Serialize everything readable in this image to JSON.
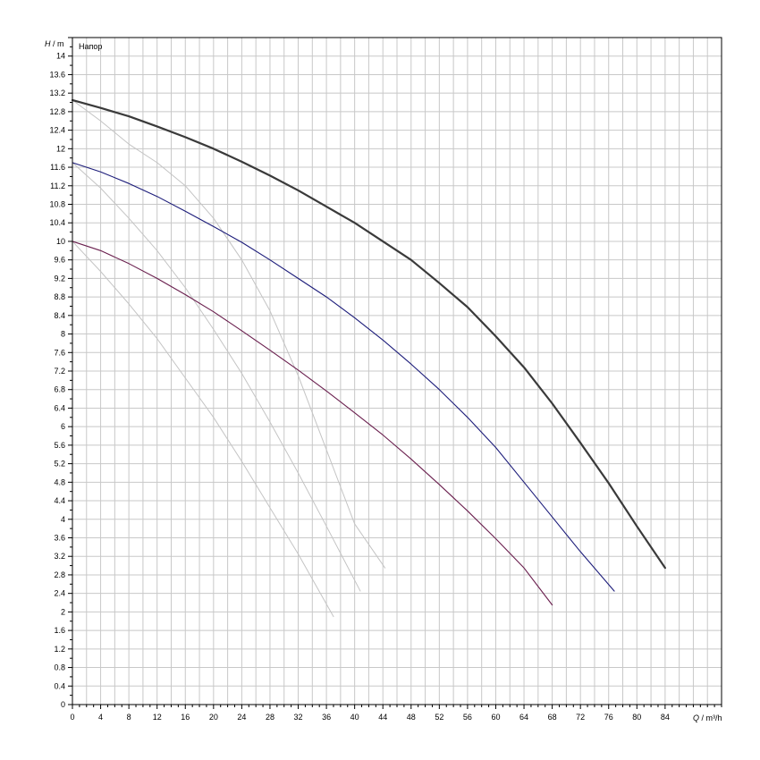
{
  "chart_data": {
    "type": "line",
    "title": "Напор",
    "xlabel": {
      "var": "Q",
      "unit": " / m³/h"
    },
    "ylabel": {
      "var": "H",
      "unit": " / m"
    },
    "xlim": [
      0,
      92
    ],
    "ylim": [
      0,
      14.4
    ],
    "grid": true,
    "x_ticks": [
      0,
      4,
      8,
      12,
      16,
      20,
      24,
      28,
      32,
      36,
      40,
      44,
      48,
      52,
      56,
      60,
      64,
      68,
      72,
      76,
      80,
      84
    ],
    "y_ticks": [
      0,
      0.4,
      0.8,
      1.2,
      1.6,
      2,
      2.4,
      2.8,
      3.2,
      3.6,
      4,
      4.4,
      4.8,
      5.2,
      5.6,
      6,
      6.4,
      6.8,
      7.2,
      7.6,
      8,
      8.4,
      8.8,
      9.2,
      9.6,
      10,
      10.4,
      10.8,
      11.2,
      11.6,
      12,
      12.4,
      12.8,
      13.2,
      13.6,
      14
    ],
    "colors": {
      "grid": "#c8c8c8",
      "frame": "#000000",
      "curve_max": "#3a3a3a",
      "curve_mid": "#1c1c7a",
      "curve_min": "#6a1f4e",
      "system": "#c4c4c4"
    },
    "series": [
      {
        "role": "curve_max",
        "width": 2.2,
        "x": [
          0,
          4,
          8,
          12,
          16,
          20,
          24,
          28,
          32,
          36,
          40,
          44,
          48,
          52,
          56,
          60,
          64,
          68,
          72,
          76,
          80,
          84
        ],
        "y": [
          13.05,
          12.88,
          12.7,
          12.48,
          12.25,
          12.0,
          11.72,
          11.42,
          11.1,
          10.75,
          10.4,
          10.0,
          9.6,
          9.1,
          8.58,
          7.95,
          7.28,
          6.5,
          5.65,
          4.78,
          3.85,
          2.95
        ]
      },
      {
        "role": "curve_mid",
        "width": 1.1,
        "x": [
          0,
          4,
          8,
          12,
          16,
          20,
          24,
          28,
          32,
          36,
          40,
          44,
          48,
          52,
          56,
          60,
          64,
          68,
          72,
          76.8
        ],
        "y": [
          11.7,
          11.5,
          11.25,
          10.97,
          10.65,
          10.32,
          9.98,
          9.6,
          9.2,
          8.8,
          8.35,
          7.87,
          7.35,
          6.8,
          6.2,
          5.55,
          4.8,
          4.05,
          3.3,
          2.45
        ]
      },
      {
        "role": "curve_min",
        "width": 1.1,
        "x": [
          0,
          4,
          8,
          12,
          16,
          20,
          24,
          28,
          32,
          36,
          40,
          44,
          48,
          52,
          56,
          60,
          64,
          68
        ],
        "y": [
          10.0,
          9.8,
          9.52,
          9.2,
          8.85,
          8.48,
          8.07,
          7.65,
          7.22,
          6.77,
          6.3,
          5.82,
          5.3,
          4.75,
          4.18,
          3.58,
          2.95,
          2.15
        ]
      },
      {
        "role": "system",
        "width": 1,
        "x": [
          0,
          4,
          8,
          12,
          16,
          20,
          24,
          28,
          32,
          36,
          40,
          44.3
        ],
        "y": [
          13.05,
          12.6,
          12.1,
          11.7,
          11.2,
          10.5,
          9.6,
          8.5,
          7.1,
          5.5,
          3.9,
          2.95
        ]
      },
      {
        "role": "system",
        "width": 1,
        "x": [
          0,
          4,
          8,
          12,
          16,
          20,
          24,
          28,
          32,
          36,
          40.8
        ],
        "y": [
          11.7,
          11.15,
          10.5,
          9.8,
          9.0,
          8.1,
          7.15,
          6.1,
          5.0,
          3.85,
          2.45
        ]
      },
      {
        "role": "system",
        "width": 1,
        "x": [
          0,
          4,
          8,
          12,
          16,
          20,
          24,
          28,
          32,
          37
        ],
        "y": [
          10.0,
          9.35,
          8.65,
          7.9,
          7.05,
          6.2,
          5.25,
          4.25,
          3.25,
          1.9
        ]
      }
    ]
  }
}
